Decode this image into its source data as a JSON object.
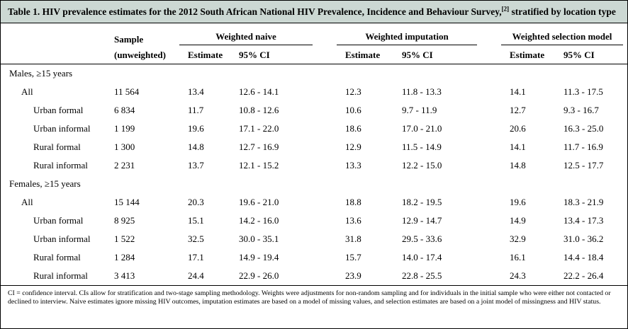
{
  "colors": {
    "title_band_bg": "#ccd8d3",
    "rule": "#000000"
  },
  "title": {
    "main": "Table 1. HIV prevalence estimates for the 2012 South African National HIV Prevalence, Incidence and Behaviour Survey,",
    "sup": "[2]",
    "rest": " stratified by location type"
  },
  "header": {
    "sample_line1": "Sample",
    "sample_line2": "(unweighted)",
    "estimate_label": "Estimate",
    "ci_label": "95% CI",
    "groups": [
      {
        "label": "Weighted naive"
      },
      {
        "label": "Weighted imputation"
      },
      {
        "label": "Weighted selection model"
      }
    ]
  },
  "sections": [
    {
      "label": "Males, ≥15 years",
      "rows": [
        {
          "label": "All",
          "indent": 1,
          "sample": "11 564",
          "naive": {
            "estimate": "13.4",
            "ci": "12.6 - 14.1"
          },
          "imputation": {
            "estimate": "12.3",
            "ci": "11.8 - 13.3"
          },
          "selection": {
            "estimate": "14.1",
            "ci": "11.3 - 17.5"
          }
        },
        {
          "label": "Urban formal",
          "indent": 2,
          "sample": "6 834",
          "naive": {
            "estimate": "11.7",
            "ci": "10.8 - 12.6"
          },
          "imputation": {
            "estimate": "10.6",
            "ci": "9.7 - 11.9"
          },
          "selection": {
            "estimate": "12.7",
            "ci": "9.3 - 16.7"
          }
        },
        {
          "label": "Urban informal",
          "indent": 2,
          "sample": "1 199",
          "naive": {
            "estimate": "19.6",
            "ci": "17.1 - 22.0"
          },
          "imputation": {
            "estimate": "18.6",
            "ci": "17.0 - 21.0"
          },
          "selection": {
            "estimate": "20.6",
            "ci": "16.3 - 25.0"
          }
        },
        {
          "label": "Rural formal",
          "indent": 2,
          "sample": "1 300",
          "naive": {
            "estimate": "14.8",
            "ci": "12.7 - 16.9"
          },
          "imputation": {
            "estimate": "12.9",
            "ci": "11.5 - 14.9"
          },
          "selection": {
            "estimate": "14.1",
            "ci": "11.7 - 16.9"
          }
        },
        {
          "label": "Rural informal",
          "indent": 2,
          "sample": "2 231",
          "naive": {
            "estimate": "13.7",
            "ci": "12.1 - 15.2"
          },
          "imputation": {
            "estimate": "13.3",
            "ci": "12.2 - 15.0"
          },
          "selection": {
            "estimate": "14.8",
            "ci": "12.5 - 17.7"
          }
        }
      ]
    },
    {
      "label": "Females, ≥15 years",
      "rows": [
        {
          "label": "All",
          "indent": 1,
          "sample": "15 144",
          "naive": {
            "estimate": "20.3",
            "ci": "19.6 - 21.0"
          },
          "imputation": {
            "estimate": "18.8",
            "ci": "18.2 - 19.5"
          },
          "selection": {
            "estimate": "19.6",
            "ci": "18.3 - 21.9"
          }
        },
        {
          "label": "Urban formal",
          "indent": 2,
          "sample": "8 925",
          "naive": {
            "estimate": "15.1",
            "ci": "14.2 - 16.0"
          },
          "imputation": {
            "estimate": "13.6",
            "ci": "12.9 - 14.7"
          },
          "selection": {
            "estimate": "14.9",
            "ci": "13.4 - 17.3"
          }
        },
        {
          "label": "Urban informal",
          "indent": 2,
          "sample": "1 522",
          "naive": {
            "estimate": "32.5",
            "ci": "30.0 - 35.1"
          },
          "imputation": {
            "estimate": "31.8",
            "ci": "29.5 - 33.6"
          },
          "selection": {
            "estimate": "32.9",
            "ci": "31.0 - 36.2"
          }
        },
        {
          "label": "Rural formal",
          "indent": 2,
          "sample": "1 284",
          "naive": {
            "estimate": "17.1",
            "ci": "14.9 - 19.4"
          },
          "imputation": {
            "estimate": "15.7",
            "ci": "14.0 - 17.4"
          },
          "selection": {
            "estimate": "16.1",
            "ci": "14.4 - 18.4"
          }
        },
        {
          "label": "Rural informal",
          "indent": 2,
          "sample": "3 413",
          "naive": {
            "estimate": "24.4",
            "ci": "22.9 - 26.0"
          },
          "imputation": {
            "estimate": "23.9",
            "ci": "22.8 - 25.5"
          },
          "selection": {
            "estimate": "24.3",
            "ci": "22.2 - 26.4"
          }
        }
      ]
    }
  ],
  "footnote": "CI = confidence interval. CIs allow for stratification and two-stage sampling methodology. Weights were adjustments for non-random sampling and for individuals in the initial sample who were either not contacted or declined to interview. Naive estimates ignore missing HIV outcomes, imputation estimates are based on a model of missing values, and selection estimates are based on a joint model of missingness and HIV status."
}
